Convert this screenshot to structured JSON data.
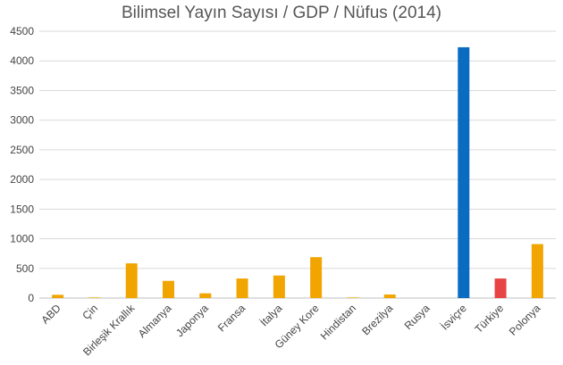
{
  "chart_data": {
    "type": "bar",
    "title": "Bilimsel Yayın Sayısı / GDP / Nüfus (2014)",
    "xlabel": "",
    "ylabel": "",
    "categories": [
      "ABD",
      "Çin",
      "Birleşik Krallık",
      "Almanya",
      "Japonya",
      "Fransa",
      "İtalya",
      "Güney Kore",
      "Hindistan",
      "Brezilya",
      "Rusya",
      "İsviçre",
      "Türkiye",
      "Polonya"
    ],
    "values": [
      55,
      10,
      585,
      290,
      80,
      330,
      380,
      690,
      10,
      60,
      0,
      4230,
      330,
      910
    ],
    "ylim": [
      0,
      4500
    ],
    "yticks": [
      0,
      500,
      1000,
      1500,
      2000,
      2500,
      3000,
      3500,
      4000,
      4500
    ],
    "grid": true,
    "legend": "none",
    "colors": {
      "default": "#f0a500",
      "highlight_blue": "#0a6cc1",
      "highlight_red": "#e84444"
    },
    "bar_colors": [
      "#f0a500",
      "#f0a500",
      "#f0a500",
      "#f0a500",
      "#f0a500",
      "#f0a500",
      "#f0a500",
      "#f0a500",
      "#f0a500",
      "#f0a500",
      "#f0a500",
      "#0a6cc1",
      "#e84444",
      "#f0a500"
    ]
  }
}
